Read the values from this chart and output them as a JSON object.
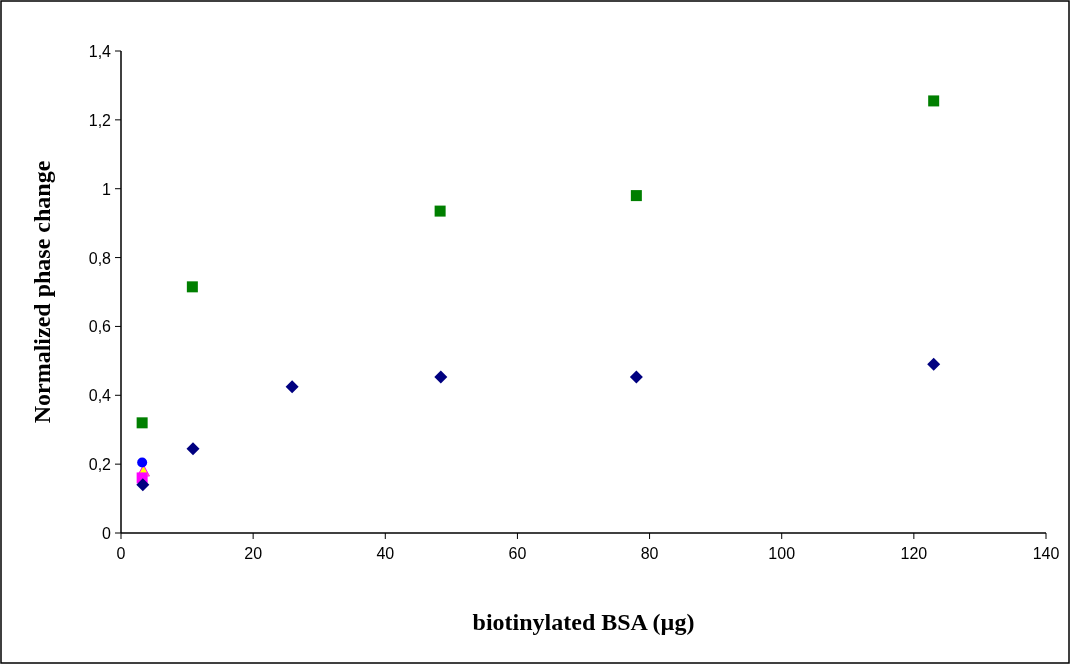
{
  "chart_data": {
    "type": "scatter",
    "xlabel": "biotinylated BSA (µg)",
    "ylabel": "Normalized phase change",
    "xlim": [
      0,
      140
    ],
    "xticks": [
      0,
      20,
      40,
      60,
      80,
      100,
      120,
      140
    ],
    "ylim": [
      0,
      1.4
    ],
    "yticks": [
      0,
      {
        "value": 0.2,
        "label": "0,2"
      },
      {
        "value": 0.4,
        "label": "0,4"
      },
      {
        "value": 0.6,
        "label": "0,6"
      },
      {
        "value": 0.8,
        "label": "0,8"
      },
      1,
      {
        "value": 1.2,
        "label": "1,2"
      },
      {
        "value": 1.4,
        "label": "1,4"
      }
    ],
    "grid": false,
    "series": [
      {
        "color": "#007f00",
        "marker": "square",
        "x": [
          3.2,
          10.8,
          48.3,
          78,
          123
        ],
        "values": [
          0.32,
          0.715,
          0.935,
          0.98,
          1.255
        ]
      },
      {
        "color": "#000080",
        "marker": "diamond",
        "x": [
          3.3,
          10.9,
          25.9,
          48.4,
          78,
          123
        ],
        "values": [
          0.14,
          0.245,
          0.425,
          0.453,
          0.453,
          0.49
        ]
      },
      {
        "color": "#0000ff",
        "marker": "circle",
        "x": [
          3.2
        ],
        "values": [
          0.205
        ]
      },
      {
        "color": "#ff00ff",
        "marker": "square",
        "x": [
          3.2
        ],
        "values": [
          0.16
        ]
      },
      {
        "color": "#ffff00",
        "marker": "triangle",
        "x": [
          3.4
        ],
        "values": [
          0.18
        ]
      }
    ]
  }
}
